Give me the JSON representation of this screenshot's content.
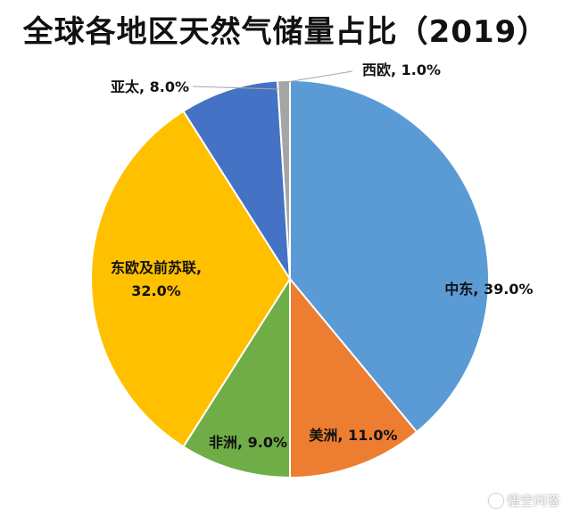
{
  "chart_data": {
    "type": "pie",
    "title": "全球各地区天然气储量占比（2019）",
    "slices": [
      {
        "label": "中东",
        "value": 39.0,
        "display": "39.0%",
        "color": "#5B9BD5"
      },
      {
        "label": "美洲",
        "value": 11.0,
        "display": "11.0%",
        "color": "#ED7D31"
      },
      {
        "label": "非洲",
        "value": 9.0,
        "display": "9.0%",
        "color": "#70AD47"
      },
      {
        "label": "东欧及前苏联",
        "value": 32.0,
        "display": "32.0%",
        "color": "#FFC000"
      },
      {
        "label": "亚太",
        "value": 8.0,
        "display": "8.0%",
        "color": "#4472C4"
      },
      {
        "label": "西欧",
        "value": 1.0,
        "display": "1.0%",
        "color": "#A5A5A5"
      }
    ]
  },
  "watermark": {
    "text": "悟空问答",
    "icon": "wukong-logo-icon"
  }
}
